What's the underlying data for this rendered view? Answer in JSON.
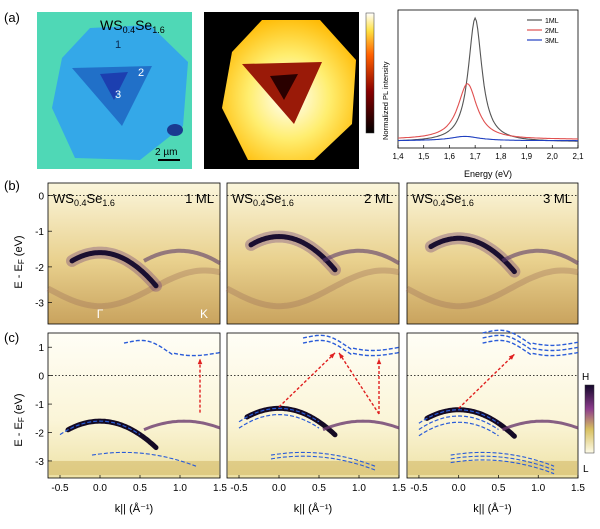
{
  "panel_labels": [
    "(a)",
    "(b)",
    "(c)"
  ],
  "optical": {
    "title_prefix": "WS",
    "title_sub1": "0.4",
    "title_mid": "Se",
    "title_sub2": "1.6",
    "region_labels": [
      "1",
      "2",
      "3"
    ],
    "scale_bar": "2 µm",
    "colors": {
      "bg": "#4fd8b6",
      "ml1": "#34a8e8",
      "ml2": "#2170c8",
      "ml3": "#1c3fb0"
    }
  },
  "pl_map": {
    "colorbar_label": "Normalized PL intensity"
  },
  "chart_data": [
    {
      "type": "line",
      "title": "",
      "xlabel": "Energy (eV)",
      "ylabel": "",
      "xlim": [
        1.4,
        2.1
      ],
      "x_ticks": [
        "1,4",
        "1,5",
        "1,6",
        "1,7",
        "1,8",
        "1,9",
        "2,0",
        "2,1"
      ],
      "legend_position": "top-right",
      "series": [
        {
          "name": "1ML",
          "color": "#555555",
          "peak_energy": 1.7,
          "peak_height": 1.0,
          "width": 0.032,
          "baseline": 0.0
        },
        {
          "name": "2ML",
          "color": "#e05050",
          "peak_energy": 1.67,
          "peak_height": 0.45,
          "width": 0.045,
          "baseline": 0.02
        },
        {
          "name": "3ML",
          "color": "#2040c0",
          "peak_energy": 1.66,
          "peak_height": 0.035,
          "width": 0.07,
          "baseline": 0.01
        }
      ]
    },
    {
      "type": "heatmap",
      "ylabel": "E - E_F (eV)",
      "ylim": [
        -3.6,
        0.35
      ],
      "y_ticks": [
        "0",
        "-1",
        "-2",
        "-3"
      ],
      "panels": [
        {
          "label": "1 ML",
          "peak_e": -1.6,
          "bottom_labels": [
            "Γ",
            "K"
          ]
        },
        {
          "label": "2 ML",
          "peak_e": -1.15,
          "bottom_labels": []
        },
        {
          "label": "3 ML",
          "peak_e": -1.2,
          "bottom_labels": []
        }
      ],
      "sample_prefix": "WS",
      "sample_sub1": "0.4",
      "sample_mid": "Se",
      "sample_sub2": "1.6"
    },
    {
      "type": "heatmap",
      "xlabel": "k|| (Å⁻¹)",
      "ylabel": "E - E_F (eV)",
      "xlim": [
        -0.65,
        1.5
      ],
      "ylim": [
        -3.6,
        1.5
      ],
      "x_ticks": [
        "-0.5",
        "0.0",
        "0.5",
        "1.0",
        "1.5"
      ],
      "y_ticks": [
        "1",
        "0",
        "-1",
        "-2",
        "-3"
      ],
      "colorbar_ticks": [
        "H",
        "L"
      ]
    }
  ]
}
